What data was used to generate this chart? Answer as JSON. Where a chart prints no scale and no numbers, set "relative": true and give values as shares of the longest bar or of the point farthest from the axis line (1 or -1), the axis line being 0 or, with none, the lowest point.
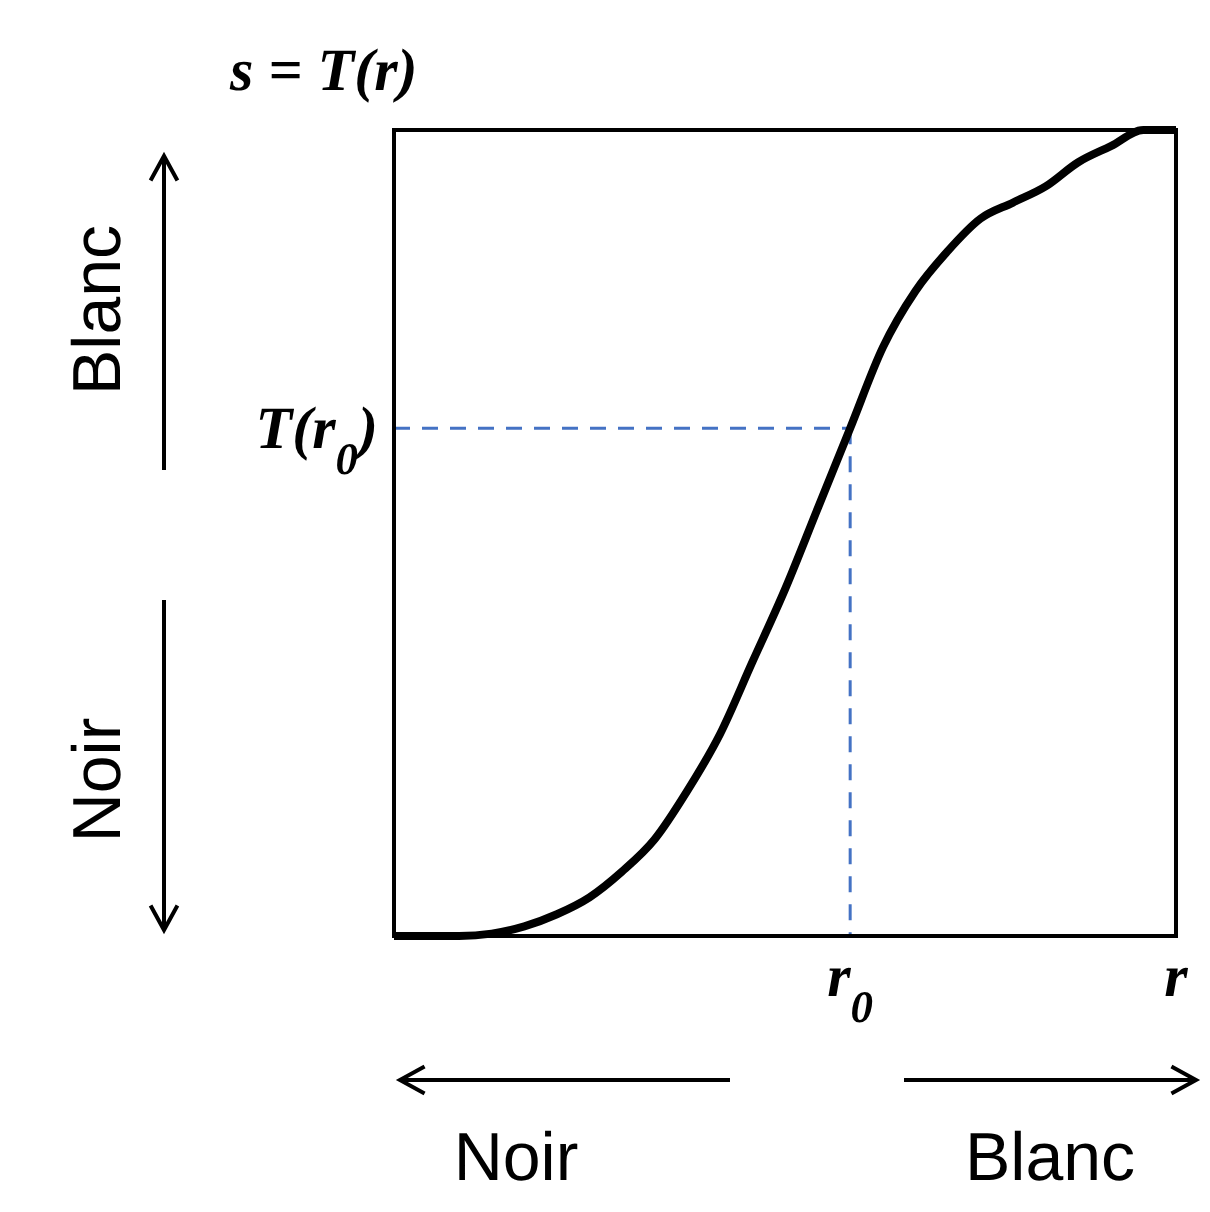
{
  "chart_data": {
    "type": "line",
    "title": "s = T(r)",
    "relative": true,
    "categories": [
      null,
      null,
      null,
      null,
      null,
      null,
      null,
      null,
      null,
      null,
      null,
      null,
      null,
      null,
      null,
      null,
      null,
      null,
      null,
      null,
      null,
      null,
      null,
      null,
      null
    ],
    "series": [
      {
        "color": "#000000",
        "values": [
          0,
          0,
          0,
          0.003,
          0.012,
          0.027,
          0.048,
          0.08,
          0.12,
          0.18,
          0.25,
          0.34,
          0.43,
          0.53,
          0.63,
          0.73,
          0.8,
          0.85,
          0.89,
          0.91,
          0.93,
          0.96,
          0.98,
          1,
          1
        ]
      }
    ],
    "ref_lines": [
      {
        "axis": "y",
        "value": 0.63,
        "label": "T(r$_{0}$)",
        "color": "#4472c4",
        "line_style": "dashed"
      }
    ],
    "annotations": [
      "r$_{0}$",
      "r",
      "Noir",
      "Blanc",
      "Blanc",
      "Noir"
    ],
    "grid": false,
    "marker": "none",
    "line_style": "solid"
  }
}
